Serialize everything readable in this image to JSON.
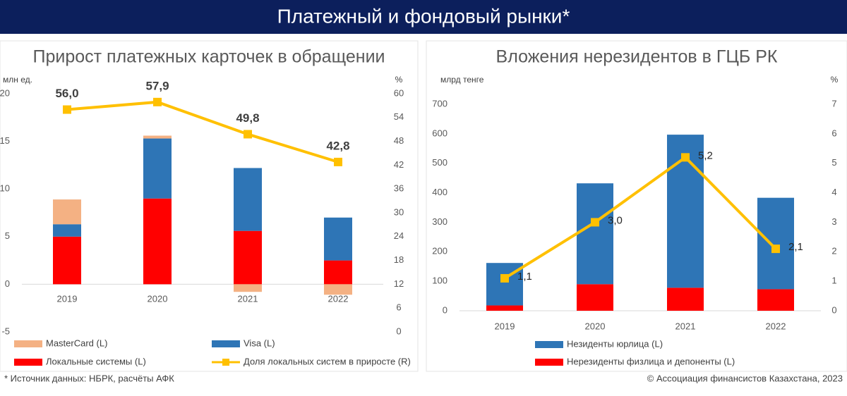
{
  "header": {
    "title": "Платежный и фондовый рынки*"
  },
  "footer": {
    "source": "* Источник данных: НБРК, расчёты АФК",
    "copyright": "© Ассоциация финансистов Казахстана, 2023"
  },
  "chart_data": [
    {
      "type": "bar",
      "stacked": true,
      "title": "Прирост платежных карточек в обращении",
      "ylabel": "млн ед.",
      "y2label": "%",
      "categories": [
        "2019",
        "2020",
        "2021",
        "2022"
      ],
      "ylim": [
        -5,
        20
      ],
      "yticks": [
        -5,
        0,
        5,
        10,
        15,
        20
      ],
      "y2lim": [
        0,
        60
      ],
      "y2ticks": [
        0,
        6,
        12,
        18,
        24,
        30,
        36,
        42,
        48,
        54,
        60
      ],
      "grid": false,
      "series": [
        {
          "name": "Локальные системы (L)",
          "type": "bar",
          "color": "#ff0000",
          "values": [
            5.0,
            9.0,
            5.6,
            2.5
          ]
        },
        {
          "name": "Visa  (L)",
          "type": "bar",
          "color": "#2e75b6",
          "values": [
            1.3,
            6.3,
            6.6,
            4.5
          ]
        },
        {
          "name": "MasterCard (L)",
          "type": "bar",
          "color": "#f4b183",
          "values": [
            2.6,
            0.3,
            -0.8,
            -1.1
          ]
        },
        {
          "name": "Доля локальных систем в приросте (R)",
          "type": "line",
          "axis": "y2",
          "color": "#ffc000",
          "values": [
            56.0,
            57.9,
            49.8,
            42.8
          ],
          "value_labels": [
            "56,0",
            "57,9",
            "49,8",
            "42,8"
          ]
        }
      ]
    },
    {
      "type": "bar",
      "stacked": true,
      "title": "Вложения нерезидентов в ГЦБ РК",
      "ylabel": "млрд тенге",
      "y2label": "%",
      "categories": [
        "2019",
        "2020",
        "2021",
        "2022"
      ],
      "ylim": [
        0,
        700
      ],
      "yticks": [
        0,
        100,
        200,
        300,
        400,
        500,
        600,
        700
      ],
      "y2lim": [
        0,
        7
      ],
      "y2ticks": [
        0,
        1,
        2,
        3,
        4,
        5,
        6,
        7
      ],
      "grid": false,
      "series": [
        {
          "name": "Нерезиденты физлица и депоненты (L)",
          "type": "bar",
          "color": "#ff0000",
          "values": [
            18,
            90,
            78,
            73
          ]
        },
        {
          "name": "Незиденты юрлица (L)",
          "type": "bar",
          "color": "#2e75b6",
          "values": [
            144,
            342,
            519,
            310
          ]
        },
        {
          "name": "",
          "type": "line",
          "axis": "y2",
          "color": "#ffc000",
          "values": [
            1.1,
            3.0,
            5.2,
            2.1
          ],
          "value_labels": [
            "1,1",
            "3,0",
            "5,2",
            "2,1"
          ]
        }
      ]
    }
  ]
}
